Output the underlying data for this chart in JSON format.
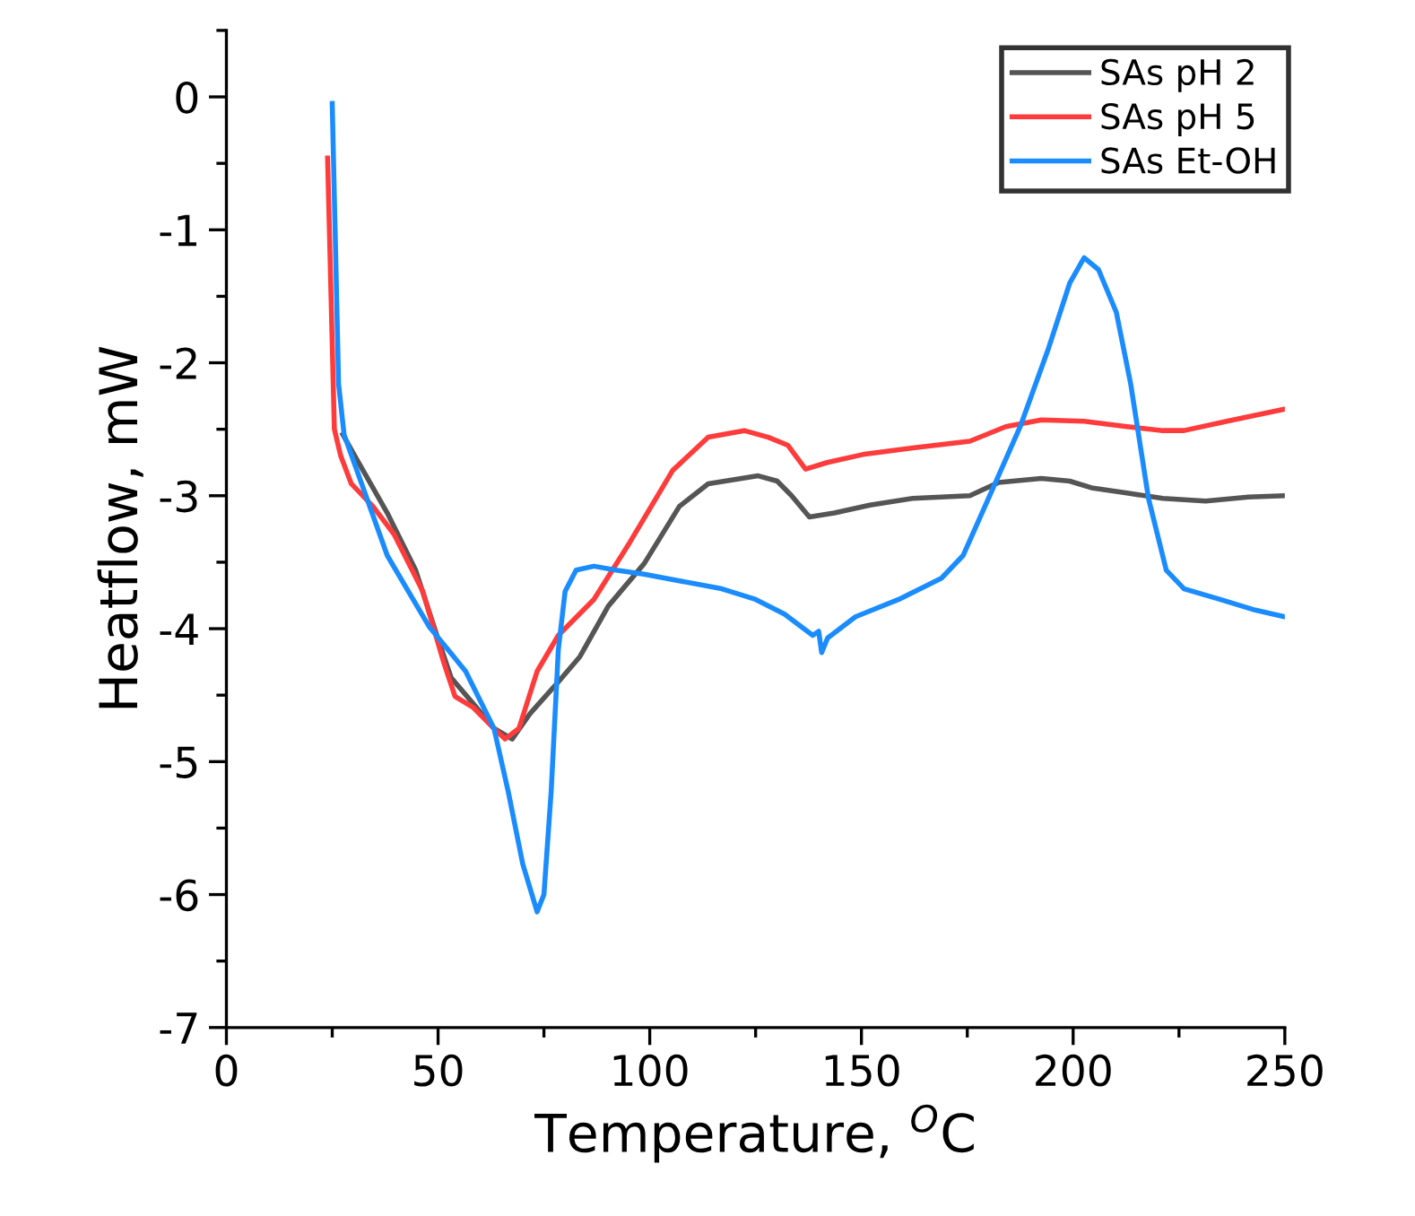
{
  "chart_data": {
    "type": "line",
    "xlabel": "Temperature, $^{O}$C",
    "ylabel": "Heatflow, mW",
    "xlim": [
      0,
      250
    ],
    "ylim": [
      -7,
      0.5
    ],
    "xticks": [
      0,
      50,
      100,
      150,
      200,
      250
    ],
    "yticks": [
      {
        "value": -7,
        "label": "-7"
      },
      {
        "value": -6,
        "label": "-6"
      },
      {
        "value": -5,
        "label": "-5"
      },
      {
        "value": -4,
        "label": "-4"
      },
      {
        "value": -3,
        "label": "-3"
      },
      {
        "value": -2,
        "label": "-2"
      },
      {
        "value": -1,
        "label": "-1"
      },
      0
    ],
    "grid": false,
    "legend": "top right",
    "marker": "none",
    "line_style": "solid",
    "series": [
      {
        "name": "SAs pH 2",
        "color": "#555555",
        "x": [
          27.5,
          31.2,
          38,
          44.7,
          49.7,
          53.1,
          58.2,
          63.2,
          67.5,
          71.7,
          78.4,
          83.5,
          90.2,
          98.7,
          107,
          113.8,
          125.6,
          130.1,
          133.5,
          137.7,
          143.6,
          152,
          162.1,
          175.6,
          182.4,
          192.5,
          199.2,
          204.3,
          212.7,
          221.2,
          231.3,
          241.4,
          249.8
        ],
        "values": [
          -2.54,
          -2.75,
          -3.13,
          -3.56,
          -4.05,
          -4.37,
          -4.56,
          -4.75,
          -4.83,
          -4.64,
          -4.4,
          -4.21,
          -3.83,
          -3.51,
          -3.08,
          -2.91,
          -2.85,
          -2.89,
          -3.0,
          -3.16,
          -3.13,
          -3.07,
          -3.02,
          -3.0,
          -2.9,
          -2.87,
          -2.89,
          -2.94,
          -2.98,
          -3.02,
          -3.04,
          -3.01,
          -3.0
        ]
      },
      {
        "name": "SAs pH 5",
        "color": "#ff3b3b",
        "x": [
          23.9,
          25.5,
          27,
          29.5,
          34.6,
          39.6,
          46.4,
          51.4,
          54,
          58.2,
          63.2,
          65.8,
          69.1,
          73.4,
          78.4,
          86.8,
          95.3,
          105.4,
          113.8,
          122.3,
          128,
          132.6,
          136.8,
          141.9,
          150.3,
          162.1,
          175.6,
          184.1,
          192.5,
          202.6,
          212.7,
          221.2,
          226.2,
          236.3,
          249.8
        ],
        "values": [
          -0.46,
          -2.5,
          -2.7,
          -2.91,
          -3.08,
          -3.29,
          -3.72,
          -4.26,
          -4.51,
          -4.59,
          -4.75,
          -4.83,
          -4.75,
          -4.32,
          -4.05,
          -3.78,
          -3.35,
          -2.81,
          -2.56,
          -2.51,
          -2.56,
          -2.62,
          -2.8,
          -2.75,
          -2.69,
          -2.64,
          -2.59,
          -2.48,
          -2.43,
          -2.44,
          -2.48,
          -2.51,
          -2.51,
          -2.44,
          -2.35
        ]
      },
      {
        "name": "SAs Et-OH",
        "color": "#1a8cff",
        "x": [
          25,
          26.5,
          27.8,
          38,
          48,
          56.5,
          63.2,
          66.6,
          70,
          73.4,
          75,
          76.7,
          78.4,
          80,
          82.6,
          86.8,
          92,
          98.6,
          107,
          117,
          125,
          131.8,
          138.5,
          139.9,
          140.6,
          142,
          148.6,
          158.8,
          168.9,
          174,
          180.7,
          187.5,
          194.2,
          199.2,
          202.6,
          206,
          210.2,
          213.6,
          217.8,
          222,
          226.2,
          234.7,
          243,
          249.8
        ],
        "values": [
          -0.05,
          -2.16,
          -2.54,
          -3.45,
          -3.99,
          -4.32,
          -4.75,
          -5.23,
          -5.77,
          -6.13,
          -6.0,
          -5.23,
          -4.16,
          -3.72,
          -3.56,
          -3.53,
          -3.56,
          -3.59,
          -3.64,
          -3.7,
          -3.78,
          -3.89,
          -4.05,
          -4.02,
          -4.18,
          -4.07,
          -3.91,
          -3.78,
          -3.62,
          -3.45,
          -2.97,
          -2.48,
          -1.89,
          -1.4,
          -1.21,
          -1.3,
          -1.62,
          -2.16,
          -3.02,
          -3.56,
          -3.7,
          -3.78,
          -3.86,
          -3.91
        ]
      }
    ]
  }
}
